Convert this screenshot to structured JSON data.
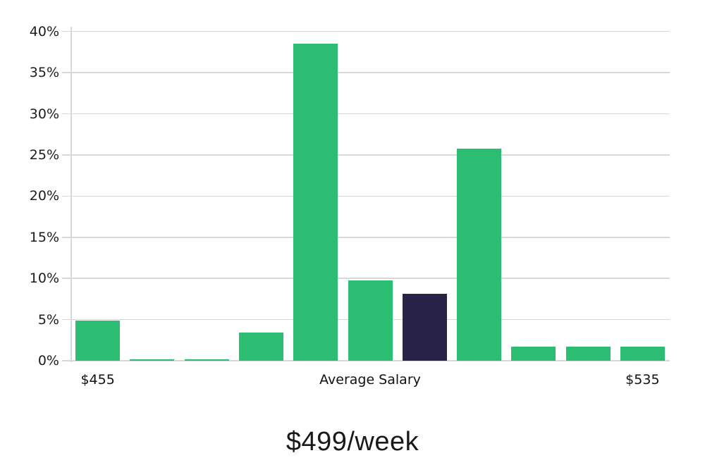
{
  "colors": {
    "bar": "#2bbd71",
    "highlighted_bar": "#292347",
    "gridline": "#d8d8d8",
    "axis_text": "#1c1c1c",
    "title_text": "#191919"
  },
  "chart_data": {
    "type": "bar",
    "title": "$499/week",
    "values": [
      4.9,
      0.15,
      0.15,
      3.4,
      38.5,
      9.8,
      8.1,
      25.8,
      1.7,
      1.7,
      1.7
    ],
    "value_unit": "%",
    "highlighted_bar_index": 6,
    "y_ticks": [
      0,
      5,
      10,
      15,
      20,
      25,
      30,
      35,
      40
    ],
    "y_tick_suffix": "%",
    "ylim": [
      0,
      40
    ],
    "x_tick_labels": [
      {
        "label": "$455",
        "bar_index": 0
      },
      {
        "label": "Average Salary",
        "bar_index": 5
      },
      {
        "label": "$535",
        "bar_index": 10
      }
    ],
    "grid": true,
    "legend": false,
    "xlabel": "",
    "ylabel": ""
  }
}
